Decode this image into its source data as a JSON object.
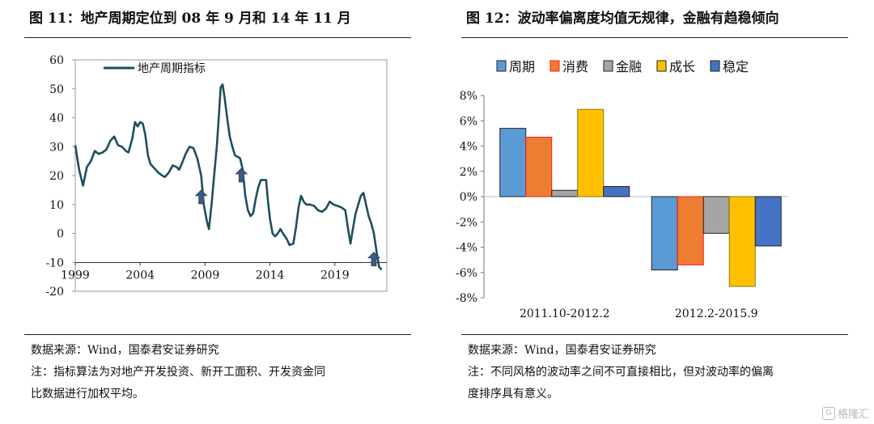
{
  "figures": [
    {
      "title": "图 11：地产周期定位到 08 年 9 月和 14 年 11 月",
      "source": "数据来源：Wind，国泰君安证券研究",
      "notes": [
        "注：指标算法为对地产开发投资、新开工面积、开发资金同",
        "比数据进行加权平均。"
      ]
    },
    {
      "title": "图 12：波动率偏离度均值无规律，金融有趋稳倾向",
      "source": "数据来源：Wind，国泰君安证券研究",
      "notes": [
        "注：不同风格的波动率之间不可直接相比，但对波动率的偏离",
        "度排序具有意义。"
      ]
    }
  ],
  "watermark": "格隆汇",
  "chart_data": [
    {
      "type": "line",
      "title": "",
      "xlabel": "",
      "ylabel": "",
      "ylim": [
        -20,
        60
      ],
      "xlim": [
        1999,
        2023
      ],
      "y_ticks": [
        60,
        50,
        40,
        30,
        20,
        10,
        0,
        -10,
        -20
      ],
      "x_ticks": [
        1999,
        2004,
        2009,
        2014,
        2019
      ],
      "legend": "top-left",
      "series": [
        {
          "name": "地产周期指标",
          "color": "#1f4e5f",
          "points": [
            [
              1999.0,
              30.5
            ],
            [
              1999.3,
              22
            ],
            [
              1999.6,
              16.5
            ],
            [
              1999.9,
              23
            ],
            [
              2000.2,
              25
            ],
            [
              2000.5,
              28.5
            ],
            [
              2000.8,
              27.5
            ],
            [
              2001.1,
              28
            ],
            [
              2001.4,
              29
            ],
            [
              2001.7,
              32
            ],
            [
              2002.0,
              33.5
            ],
            [
              2002.3,
              30.5
            ],
            [
              2002.6,
              30
            ],
            [
              2002.9,
              28.5
            ],
            [
              2003.1,
              28
            ],
            [
              2003.4,
              33
            ],
            [
              2003.6,
              38.5
            ],
            [
              2003.8,
              37
            ],
            [
              2004.0,
              38.5
            ],
            [
              2004.2,
              38
            ],
            [
              2004.4,
              34
            ],
            [
              2004.6,
              27
            ],
            [
              2004.8,
              24
            ],
            [
              2005.1,
              22.5
            ],
            [
              2005.4,
              21
            ],
            [
              2005.7,
              20
            ],
            [
              2005.9,
              19.5
            ],
            [
              2006.2,
              21
            ],
            [
              2006.5,
              23.5
            ],
            [
              2006.8,
              23
            ],
            [
              2007.0,
              22
            ],
            [
              2007.2,
              24
            ],
            [
              2007.5,
              27.5
            ],
            [
              2007.8,
              30
            ],
            [
              2008.1,
              29.5
            ],
            [
              2008.4,
              26
            ],
            [
              2008.7,
              20
            ],
            [
              2008.9,
              10
            ],
            [
              2009.15,
              4
            ],
            [
              2009.3,
              1.5
            ],
            [
              2009.5,
              10
            ],
            [
              2009.7,
              20
            ],
            [
              2009.9,
              30
            ],
            [
              2010.05,
              40
            ],
            [
              2010.2,
              50.5
            ],
            [
              2010.35,
              51.5
            ],
            [
              2010.5,
              47
            ],
            [
              2010.7,
              40
            ],
            [
              2010.9,
              33.5
            ],
            [
              2011.1,
              30
            ],
            [
              2011.3,
              27
            ],
            [
              2011.5,
              26.5
            ],
            [
              2011.7,
              26
            ],
            [
              2011.9,
              22
            ],
            [
              2012.1,
              13
            ],
            [
              2012.3,
              8
            ],
            [
              2012.5,
              6
            ],
            [
              2012.7,
              7
            ],
            [
              2012.9,
              12
            ],
            [
              2013.1,
              16
            ],
            [
              2013.3,
              18.5
            ],
            [
              2013.5,
              18.5
            ],
            [
              2013.7,
              18.5
            ],
            [
              2013.85,
              11
            ],
            [
              2014.0,
              5
            ],
            [
              2014.2,
              0
            ],
            [
              2014.4,
              -1
            ],
            [
              2014.6,
              0
            ],
            [
              2014.8,
              1.5
            ],
            [
              2015.0,
              0
            ],
            [
              2015.3,
              -2
            ],
            [
              2015.5,
              -4
            ],
            [
              2015.8,
              -3.5
            ],
            [
              2016.0,
              2
            ],
            [
              2016.2,
              9
            ],
            [
              2016.4,
              13
            ],
            [
              2016.6,
              11
            ],
            [
              2016.8,
              10
            ],
            [
              2017.1,
              10
            ],
            [
              2017.4,
              9.5
            ],
            [
              2017.7,
              8
            ],
            [
              2018.0,
              7.5
            ],
            [
              2018.3,
              8.5
            ],
            [
              2018.6,
              11
            ],
            [
              2018.9,
              10
            ],
            [
              2019.2,
              9.5
            ],
            [
              2019.5,
              9
            ],
            [
              2019.8,
              8
            ],
            [
              2020.0,
              2
            ],
            [
              2020.2,
              -3.5
            ],
            [
              2020.4,
              2
            ],
            [
              2020.6,
              7
            ],
            [
              2020.8,
              10
            ],
            [
              2021.0,
              13
            ],
            [
              2021.2,
              14
            ],
            [
              2021.4,
              10
            ],
            [
              2021.6,
              6
            ],
            [
              2021.8,
              3.5
            ],
            [
              2022.0,
              0
            ],
            [
              2022.2,
              -6
            ],
            [
              2022.4,
              -11.5
            ],
            [
              2022.6,
              -12.5
            ]
          ]
        }
      ],
      "annotations": [
        {
          "kind": "arrow-up",
          "x": 2008.7,
          "y": 12.5
        },
        {
          "kind": "arrow-up",
          "x": 2011.8,
          "y": 20
        },
        {
          "kind": "arrow-up",
          "x": 2022.0,
          "y": -9
        }
      ]
    },
    {
      "type": "bar",
      "title": "",
      "xlabel": "",
      "ylabel": "",
      "ylim": [
        -0.08,
        0.08
      ],
      "y_ticks": [
        "8%",
        "6%",
        "4%",
        "2%",
        "0%",
        "-2%",
        "-4%",
        "-6%",
        "-8%"
      ],
      "y_tick_values": [
        0.08,
        0.06,
        0.04,
        0.02,
        0,
        -0.02,
        -0.04,
        -0.06,
        -0.08
      ],
      "categories": [
        "2011.10-2012.2",
        "2012.2-2015.9"
      ],
      "legend": "top",
      "series": [
        {
          "name": "周期",
          "color": "#5b9bd5",
          "values": [
            0.054,
            -0.058
          ]
        },
        {
          "name": "消费",
          "color": "#ed7d31",
          "values": [
            0.047,
            -0.054
          ]
        },
        {
          "name": "金融",
          "color": "#a5a5a5",
          "values": [
            0.005,
            -0.029
          ]
        },
        {
          "name": "成长",
          "color": "#ffc000",
          "values": [
            0.069,
            -0.071
          ]
        },
        {
          "name": "稳定",
          "color": "#4472c4",
          "values": [
            0.008,
            -0.039
          ]
        }
      ]
    }
  ]
}
